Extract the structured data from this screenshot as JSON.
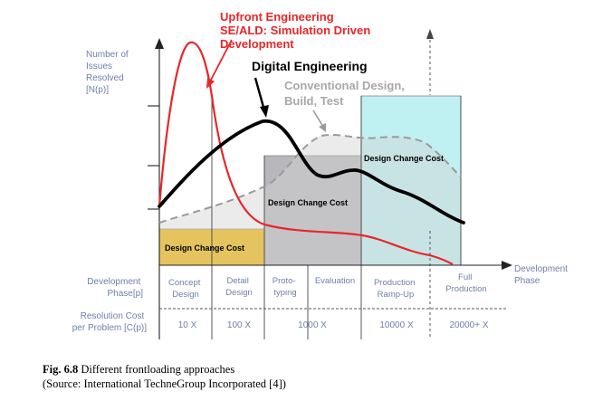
{
  "annotations": {
    "upfront": [
      "Upfront Engineering",
      "SE/ALD: Simulation Driven",
      "Development"
    ],
    "digital": "Digital Engineering",
    "conventional": [
      "Conventional Design,",
      "Build, Test"
    ]
  },
  "y_axis_label": [
    "Number of",
    "Issues",
    "Resolved",
    "[N(p)]"
  ],
  "x_axis_label": [
    "Development",
    "Phase"
  ],
  "design_change_cost": "Design Change Cost",
  "row_labels": {
    "phase": [
      "Development",
      "Phase[p]"
    ],
    "cost": [
      "Resolution Cost",
      "per Problem [C(p)]"
    ]
  },
  "phases": [
    [
      "Concept",
      "Design"
    ],
    [
      "Detail",
      "Design"
    ],
    [
      "Proto-",
      "typing"
    ],
    [
      "Evaluation"
    ],
    [
      "Production",
      "Ramp-Up"
    ],
    [
      "Full",
      "Production"
    ]
  ],
  "costs": [
    "10 X",
    "100 X",
    "1000 X",
    "10000 X",
    "20000+ X"
  ],
  "caption": {
    "fig_label": "Fig. 6.8",
    "title": "Different frontloading approaches",
    "source": "(Source: International TechneGroup Incorporated [4])"
  },
  "colors": {
    "upfront": "#e8262a",
    "digital": "#000000",
    "conventional": "#9a9a9a",
    "cost_concept": "#f5b800",
    "cost_proto": "#b8b8bc",
    "cost_production": "#bff0f2",
    "label_gray": "#6f7fa8"
  }
}
